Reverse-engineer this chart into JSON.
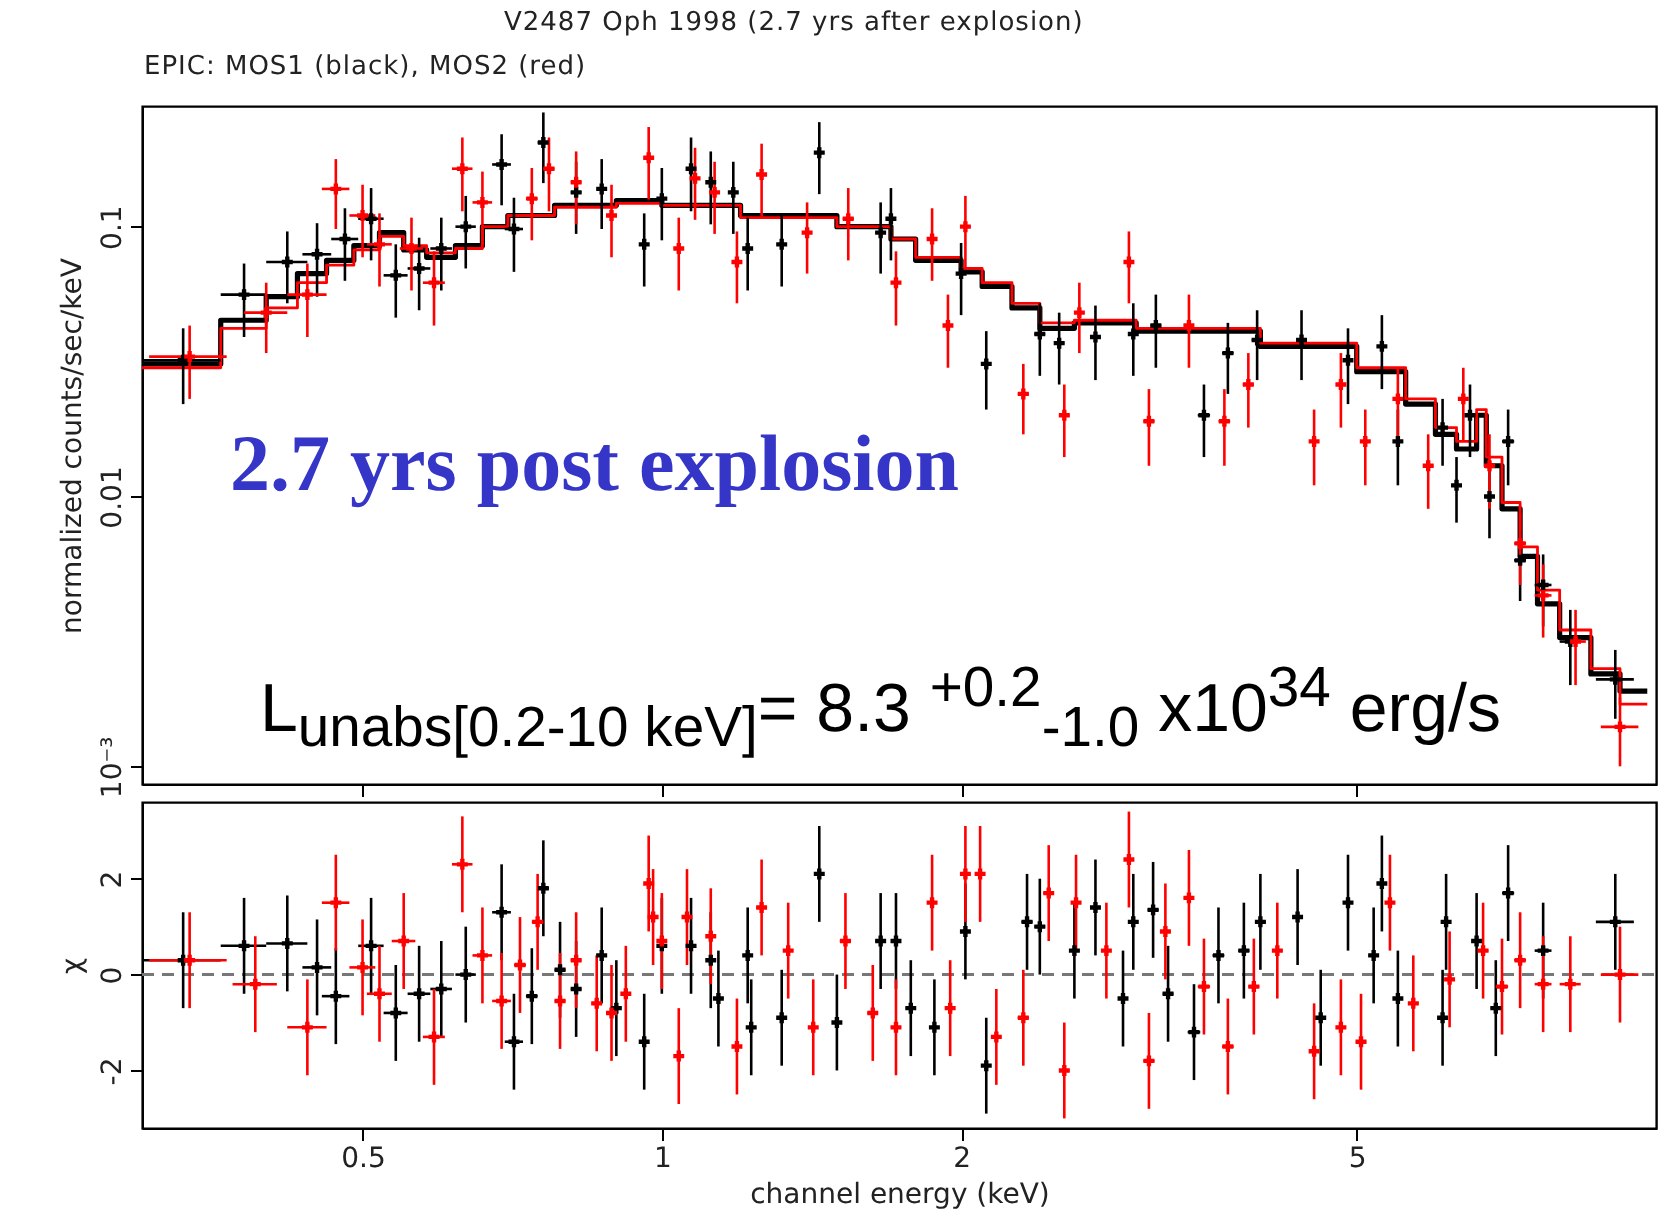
{
  "chart_data": [
    {
      "type": "scatter",
      "title": "V2487 Oph 1998 (2.7 yrs after explosion)",
      "subtitle": "EPIC: MOS1 (black), MOS2 (red)",
      "ylabel": "normalized counts/sec/keV",
      "annotations": [
        "2.7 yrs post explosion",
        "L$_{unabs[0.2-10 keV]}$= 8.3 $^{+0.2}$$_{-1.0}$ x10$^{34}$ erg/s"
      ],
      "log": "xy",
      "xlim": [
        0.3,
        10
      ],
      "xticks": [
        0.5,
        1,
        2,
        5
      ],
      "ylim": [
        0.00086,
        0.28
      ],
      "yticks": [
        0.1,
        0.01,
        {
          "value": 0.001,
          "label": "10⁻³"
        }
      ],
      "tick_labels": "y",
      "marker": "cross",
      "grid": false,
      "series": [
        {
          "color": "#000000",
          "x": [
            0.33,
            0.38,
            0.42,
            0.45,
            0.48,
            0.51,
            0.54,
            0.57,
            0.6,
            0.635,
            0.69,
            0.71,
            0.76,
            0.82,
            0.87,
            0.96,
            1.0,
            1.07,
            1.12,
            1.18,
            1.22,
            1.32,
            1.44,
            1.66,
            1.7,
            2.0,
            2.12,
            2.4,
            2.51,
            2.73,
            2.98,
            3.14,
            3.51,
            3.71,
            3.97,
            4.4,
            4.9,
            5.3,
            5.5,
            6.1,
            6.3,
            6.5,
            6.8,
            7.1,
            7.3,
            7.7,
            8.2,
            9.1
          ],
          "values": [
            0.032,
            0.056,
            0.074,
            0.079,
            0.09,
            0.107,
            0.066,
            0.07,
            0.083,
            0.1,
            0.17,
            0.098,
            0.205,
            0.134,
            0.138,
            0.086,
            0.127,
            0.164,
            0.146,
            0.134,
            0.083,
            0.086,
            0.188,
            0.095,
            0.107,
            0.067,
            0.031,
            0.04,
            0.037,
            0.039,
            0.04,
            0.043,
            0.02,
            0.034,
            0.038,
            0.038,
            0.032,
            0.036,
            0.016,
            0.018,
            0.011,
            0.02,
            0.01,
            0.016,
            0.0058,
            0.0047,
            0.0029,
            0.0021
          ],
          "errors": [
            0.01,
            0.017,
            0.022,
            0.024,
            0.027,
            0.032,
            0.02,
            0.021,
            0.025,
            0.03,
            0.05,
            0.03,
            0.06,
            0.04,
            0.04,
            0.026,
            0.038,
            0.05,
            0.044,
            0.04,
            0.025,
            0.026,
            0.056,
            0.028,
            0.032,
            0.02,
            0.01,
            0.012,
            0.011,
            0.012,
            0.012,
            0.013,
            0.006,
            0.01,
            0.011,
            0.011,
            0.01,
            0.011,
            0.005,
            0.005,
            0.003,
            0.006,
            0.003,
            0.005,
            0.0017,
            0.0014,
            0.0009,
            0.0006
          ],
          "xerrors": [
            0.03,
            0.02,
            0.02,
            0.015,
            0.015,
            0.015,
            0.015,
            0.015,
            0.015,
            0.015,
            0.015,
            0.015,
            0.01,
            0.01,
            0.01,
            0.01,
            0.01,
            0.01,
            0.01,
            0.01,
            0.01,
            0.015,
            0.015,
            0.02,
            0.02,
            0.02,
            0.02,
            0.03,
            0.03,
            0.03,
            0.03,
            0.04,
            0.05,
            0.05,
            0.05,
            0.05,
            0.05,
            0.06,
            0.06,
            0.07,
            0.07,
            0.07,
            0.08,
            0.1,
            0.1,
            0.15,
            0.2,
            0.4
          ]
        },
        {
          "color": "#ff0000",
          "x": [
            0.335,
            0.4,
            0.44,
            0.47,
            0.5,
            0.52,
            0.56,
            0.59,
            0.63,
            0.66,
            0.74,
            0.77,
            0.82,
            0.89,
            0.97,
            1.04,
            1.08,
            1.13,
            1.19,
            1.26,
            1.4,
            1.54,
            1.72,
            1.87,
            1.94,
            2.02,
            2.31,
            2.54,
            2.63,
            2.95,
            3.09,
            3.39,
            3.68,
            3.89,
            4.53,
            4.82,
            5.1,
            5.5,
            5.9,
            6.4,
            6.8,
            7.3,
            7.7,
            8.3,
            9.2
          ],
          "values": [
            0.033,
            0.048,
            0.056,
            0.138,
            0.11,
            0.086,
            0.083,
            0.062,
            0.164,
            0.123,
            0.127,
            0.164,
            0.146,
            0.11,
            0.18,
            0.083,
            0.151,
            0.134,
            0.074,
            0.156,
            0.095,
            0.107,
            0.062,
            0.09,
            0.043,
            0.1,
            0.024,
            0.02,
            0.048,
            0.074,
            0.019,
            0.043,
            0.019,
            0.026,
            0.016,
            0.026,
            0.016,
            0.023,
            0.013,
            0.023,
            0.013,
            0.0067,
            0.0043,
            0.0029,
            0.0014
          ],
          "errors": [
            0.01,
            0.014,
            0.017,
            0.04,
            0.033,
            0.026,
            0.025,
            0.019,
            0.05,
            0.037,
            0.038,
            0.05,
            0.044,
            0.033,
            0.054,
            0.025,
            0.045,
            0.04,
            0.022,
            0.047,
            0.028,
            0.032,
            0.019,
            0.027,
            0.013,
            0.03,
            0.007,
            0.006,
            0.014,
            0.022,
            0.006,
            0.013,
            0.006,
            0.008,
            0.005,
            0.008,
            0.005,
            0.007,
            0.004,
            0.007,
            0.004,
            0.002,
            0.0013,
            0.0009,
            0.0004
          ],
          "xerrors": [
            0.03,
            0.02,
            0.02,
            0.015,
            0.015,
            0.015,
            0.015,
            0.015,
            0.015,
            0.015,
            0.01,
            0.01,
            0.01,
            0.01,
            0.01,
            0.01,
            0.01,
            0.01,
            0.01,
            0.015,
            0.015,
            0.02,
            0.02,
            0.02,
            0.02,
            0.02,
            0.03,
            0.03,
            0.03,
            0.03,
            0.04,
            0.04,
            0.05,
            0.05,
            0.05,
            0.05,
            0.06,
            0.06,
            0.07,
            0.07,
            0.08,
            0.1,
            0.15,
            0.2,
            0.4
          ]
        },
        {
          "type": "step",
          "marker": "none",
          "color": "#000000",
          "x": [
            0.3,
            0.36,
            0.4,
            0.43,
            0.46,
            0.49,
            0.52,
            0.55,
            0.58,
            0.62,
            0.66,
            0.7,
            0.78,
            0.9,
            1.0,
            1.2,
            1.5,
            1.7,
            1.8,
            2.0,
            2.1,
            2.25,
            2.4,
            2.6,
            3.0,
            4.0,
            5.0,
            5.6,
            6.0,
            6.3,
            6.6,
            6.75,
            7.0,
            7.3,
            7.6,
            8.0,
            8.6,
            9.2,
            9.8
          ],
          "values": [
            0.031,
            0.045,
            0.055,
            0.067,
            0.075,
            0.085,
            0.095,
            0.082,
            0.077,
            0.085,
            0.1,
            0.11,
            0.12,
            0.125,
            0.12,
            0.11,
            0.1,
            0.09,
            0.075,
            0.068,
            0.06,
            0.05,
            0.042,
            0.044,
            0.041,
            0.036,
            0.029,
            0.022,
            0.017,
            0.015,
            0.02,
            0.013,
            0.009,
            0.006,
            0.004,
            0.003,
            0.0022,
            0.0019,
            0.0019
          ]
        },
        {
          "type": "step",
          "marker": "none",
          "color": "#ff0000",
          "x": [
            0.3,
            0.36,
            0.4,
            0.43,
            0.46,
            0.49,
            0.52,
            0.55,
            0.58,
            0.62,
            0.66,
            0.7,
            0.78,
            0.9,
            1.0,
            1.2,
            1.5,
            1.7,
            1.8,
            2.0,
            2.1,
            2.25,
            2.4,
            2.6,
            3.0,
            4.0,
            5.0,
            5.6,
            6.0,
            6.3,
            6.6,
            6.75,
            7.0,
            7.3,
            7.6,
            8.0,
            8.6,
            9.2,
            9.8
          ],
          "values": [
            0.03,
            0.042,
            0.05,
            0.062,
            0.072,
            0.082,
            0.092,
            0.085,
            0.08,
            0.083,
            0.1,
            0.11,
            0.118,
            0.122,
            0.12,
            0.108,
            0.1,
            0.09,
            0.077,
            0.07,
            0.062,
            0.052,
            0.044,
            0.045,
            0.042,
            0.037,
            0.03,
            0.023,
            0.018,
            0.016,
            0.021,
            0.014,
            0.0095,
            0.0065,
            0.0045,
            0.0032,
            0.0023,
            0.0017,
            0.0017
          ]
        }
      ]
    },
    {
      "type": "scatter",
      "xlabel": "channel energy (keV)",
      "ylabel": "χ",
      "log": "x",
      "xlim": [
        0.3,
        10
      ],
      "xticks": [
        0.5,
        1,
        2,
        5
      ],
      "ylim": [
        -3.2,
        3.6
      ],
      "yticks": [
        -2,
        0,
        2
      ],
      "marker": "cross",
      "grid": false,
      "ref_lines": [
        {
          "axis": "y",
          "value": 0,
          "color": "#777777",
          "line_style": "dashed"
        }
      ],
      "series": [
        {
          "color": "#000000",
          "x": [
            0.33,
            0.38,
            0.42,
            0.45,
            0.47,
            0.51,
            0.54,
            0.57,
            0.6,
            0.635,
            0.69,
            0.71,
            0.74,
            0.76,
            0.79,
            0.82,
            0.87,
            0.9,
            0.96,
            1.0,
            1.07,
            1.12,
            1.14,
            1.22,
            1.23,
            1.32,
            1.44,
            1.5,
            1.66,
            1.72,
            1.78,
            1.88,
            2.02,
            2.12,
            2.33,
            2.4,
            2.6,
            2.73,
            2.91,
            2.98,
            3.12,
            3.23,
            3.43,
            3.63,
            3.85,
            4.0,
            4.36,
            4.6,
            4.9,
            5.2,
            5.3,
            5.5,
            6.1,
            6.15,
            6.6,
            6.9,
            7.1,
            7.7,
            9.1
          ],
          "values": [
            0.3,
            0.6,
            0.65,
            0.15,
            -0.45,
            0.6,
            -0.8,
            -0.4,
            -0.3,
            0,
            1.3,
            -1.4,
            -0.45,
            1.8,
            0.1,
            -0.3,
            0.4,
            -0.7,
            -1.4,
            0.6,
            0.6,
            0.3,
            -0.5,
            0.4,
            -1.1,
            -0.9,
            2.1,
            -1.0,
            0.7,
            0.7,
            -0.7,
            -1.1,
            0.9,
            -1.9,
            1.1,
            1.0,
            0.5,
            1.4,
            -0.5,
            1.1,
            1.35,
            -0.4,
            -1.2,
            0.4,
            0.5,
            1.1,
            1.2,
            -0.9,
            1.5,
            0.4,
            1.9,
            -0.5,
            -0.9,
            1.1,
            0.7,
            -0.7,
            1.7,
            0.5,
            1.1
          ],
          "errors": [
            1,
            1,
            1,
            1,
            1,
            1,
            1,
            1,
            1,
            1,
            1,
            1,
            1,
            1,
            1,
            1,
            1,
            1,
            1,
            1,
            1,
            1,
            1,
            1,
            1,
            1,
            1,
            1,
            1,
            1,
            1,
            1,
            1,
            1,
            1,
            1,
            1,
            1,
            1,
            1,
            1,
            1,
            1,
            1,
            1,
            1,
            1,
            1,
            1,
            1,
            1,
            1,
            1,
            1,
            1,
            1,
            1,
            1,
            1
          ],
          "xerrors": [
            0.03,
            0.02,
            0.02,
            0.015,
            0.015,
            0.015,
            0.015,
            0.015,
            0.015,
            0.015,
            0.015,
            0.015,
            0.01,
            0.01,
            0.01,
            0.01,
            0.01,
            0.01,
            0.01,
            0.01,
            0.01,
            0.01,
            0.01,
            0.01,
            0.01,
            0.015,
            0.015,
            0.015,
            0.02,
            0.02,
            0.02,
            0.02,
            0.02,
            0.02,
            0.03,
            0.03,
            0.03,
            0.03,
            0.03,
            0.03,
            0.04,
            0.04,
            0.05,
            0.05,
            0.05,
            0.05,
            0.05,
            0.05,
            0.05,
            0.06,
            0.06,
            0.06,
            0.07,
            0.07,
            0.07,
            0.08,
            0.1,
            0.15,
            0.4
          ]
        },
        {
          "color": "#ff0000",
          "x": [
            0.335,
            0.39,
            0.44,
            0.47,
            0.5,
            0.52,
            0.55,
            0.59,
            0.63,
            0.66,
            0.69,
            0.72,
            0.75,
            0.79,
            0.82,
            0.86,
            0.89,
            0.92,
            0.97,
            0.98,
            1.0,
            1.04,
            1.06,
            1.12,
            1.19,
            1.26,
            1.34,
            1.42,
            1.53,
            1.63,
            1.72,
            1.87,
            1.95,
            2.02,
            2.09,
            2.17,
            2.31,
            2.45,
            2.54,
            2.61,
            2.8,
            2.95,
            3.09,
            3.21,
            3.39,
            3.51,
            3.71,
            3.94,
            4.16,
            4.53,
            4.82,
            5.05,
            5.4,
            5.7,
            6.2,
            6.7,
            7.0,
            7.3,
            7.7,
            8.2,
            9.2
          ],
          "values": [
            0.3,
            -0.2,
            -1.1,
            1.5,
            0.15,
            -0.4,
            0.7,
            -1.3,
            2.3,
            0.4,
            -0.55,
            0.2,
            1.1,
            -0.55,
            0.3,
            -0.6,
            -0.8,
            -0.4,
            1.9,
            1.2,
            0.7,
            -1.7,
            1.2,
            0.8,
            -1.5,
            1.4,
            0.5,
            -1.1,
            0.7,
            -0.8,
            -1.1,
            1.5,
            -0.7,
            2.1,
            2.1,
            -1.3,
            -0.9,
            1.7,
            -2.0,
            1.5,
            0.5,
            2.4,
            -1.8,
            0.9,
            1.6,
            -0.25,
            -1.5,
            -0.25,
            0.5,
            -1.6,
            -1.1,
            -1.4,
            1.5,
            -0.6,
            -0.1,
            0.5,
            -0.25,
            0.3,
            -0.2,
            -0.2,
            0
          ],
          "errors": [
            1,
            1,
            1,
            1,
            1,
            1,
            1,
            1,
            1,
            1,
            1,
            1,
            1,
            1,
            1,
            1,
            1,
            1,
            1,
            1,
            1,
            1,
            1,
            1,
            1,
            1,
            1,
            1,
            1,
            1,
            1,
            1,
            1,
            1,
            1,
            1,
            1,
            1,
            1,
            1,
            1,
            1,
            1,
            1,
            1,
            1,
            1,
            1,
            1,
            1,
            1,
            1,
            1,
            1,
            1,
            1,
            1,
            1,
            1,
            1,
            1
          ],
          "xerrors": [
            0.03,
            0.02,
            0.02,
            0.015,
            0.015,
            0.015,
            0.015,
            0.015,
            0.015,
            0.015,
            0.015,
            0.01,
            0.01,
            0.01,
            0.01,
            0.01,
            0.01,
            0.01,
            0.01,
            0.01,
            0.01,
            0.01,
            0.01,
            0.01,
            0.01,
            0.015,
            0.015,
            0.015,
            0.02,
            0.02,
            0.02,
            0.02,
            0.02,
            0.02,
            0.02,
            0.02,
            0.03,
            0.03,
            0.03,
            0.03,
            0.03,
            0.03,
            0.04,
            0.04,
            0.04,
            0.05,
            0.05,
            0.05,
            0.05,
            0.05,
            0.05,
            0.06,
            0.06,
            0.07,
            0.07,
            0.08,
            0.1,
            0.1,
            0.15,
            0.2,
            0.4
          ]
        }
      ]
    }
  ]
}
